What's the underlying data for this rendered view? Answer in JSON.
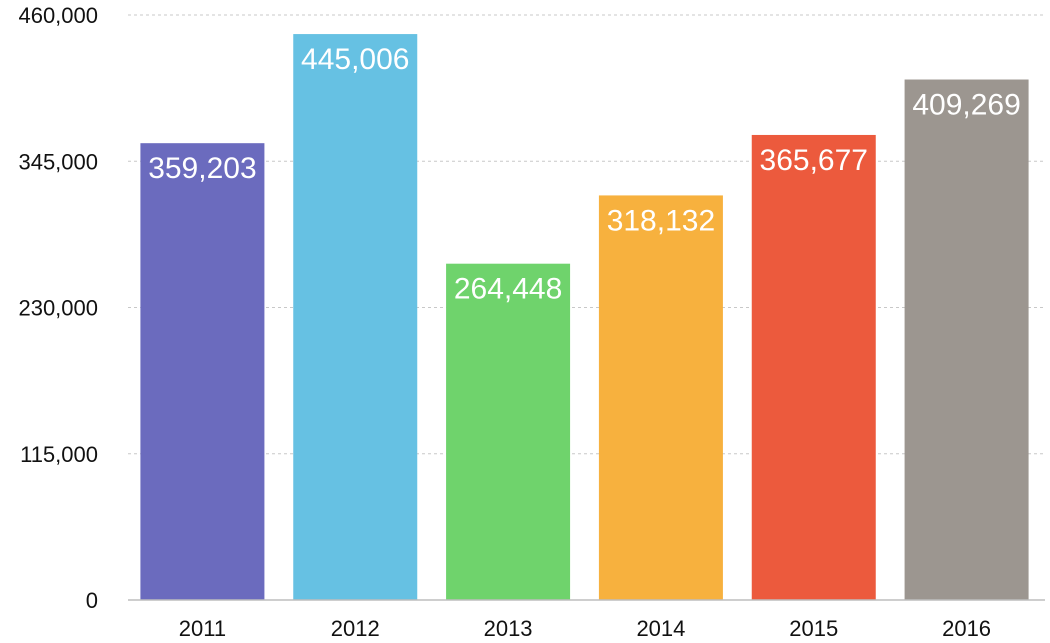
{
  "chart_data": {
    "type": "bar",
    "title": "",
    "xlabel": "",
    "ylabel": "",
    "categories": [
      "2011",
      "2012",
      "2013",
      "2014",
      "2015",
      "2016"
    ],
    "values": [
      359203,
      445006,
      264448,
      318132,
      365677,
      409269
    ],
    "value_labels": [
      "359,203",
      "445,006",
      "264,448",
      "318,132",
      "365,677",
      "409,269"
    ],
    "colors": [
      "#6B6BBE",
      "#66C1E3",
      "#6FD36C",
      "#F7B13E",
      "#EC5A3D",
      "#9C9690"
    ],
    "ylim": [
      0,
      460000
    ],
    "yticks": [
      0,
      115000,
      230000,
      345000,
      460000
    ],
    "ytick_labels": [
      "0",
      "115,000",
      "230,000",
      "345,000",
      "460,000"
    ],
    "grid": true,
    "legend": "none"
  }
}
